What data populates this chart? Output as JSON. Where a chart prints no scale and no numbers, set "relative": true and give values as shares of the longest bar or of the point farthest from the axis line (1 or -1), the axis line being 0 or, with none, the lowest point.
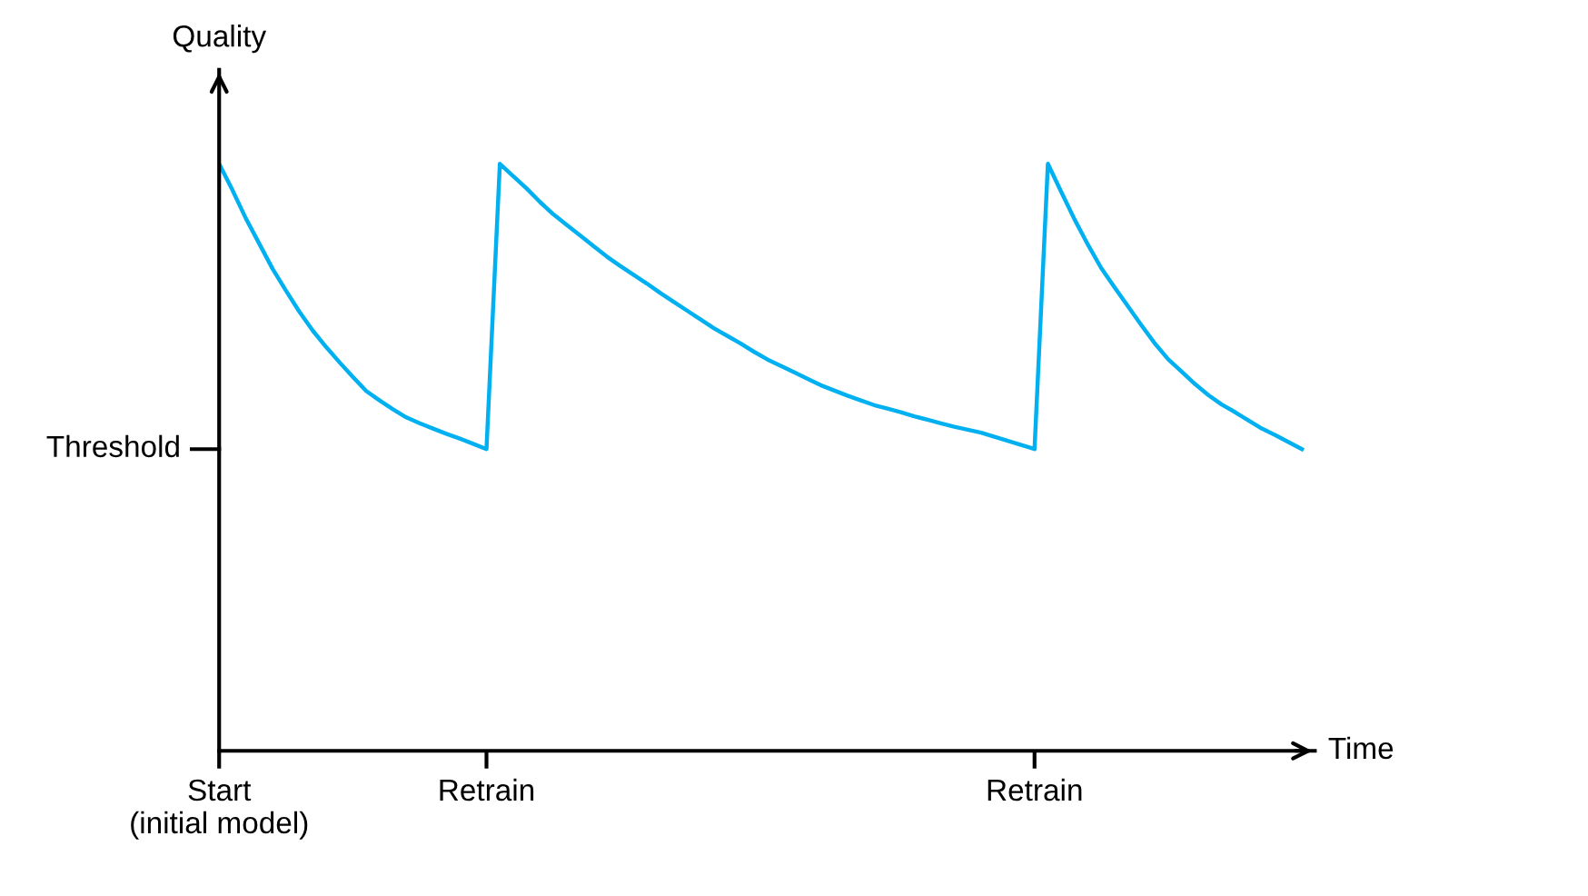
{
  "chart_data": {
    "type": "line",
    "relative": true,
    "xlabel": "Time",
    "ylabel": "Quality",
    "grid": false,
    "legend": false,
    "marker": "none",
    "line_style": "solid",
    "categories": [
      "Start\n(initial model)",
      null,
      null,
      null,
      null,
      null,
      null,
      null,
      null,
      null,
      null,
      null,
      null,
      null,
      null,
      null,
      null,
      null,
      null,
      null,
      "Retrain",
      null,
      null,
      null,
      null,
      null,
      null,
      null,
      null,
      null,
      null,
      null,
      null,
      null,
      null,
      null,
      null,
      null,
      null,
      null,
      null,
      null,
      null,
      null,
      null,
      null,
      null,
      null,
      null,
      null,
      null,
      null,
      null,
      null,
      null,
      null,
      null,
      null,
      null,
      null,
      null,
      "Retrain",
      null,
      null,
      null,
      null,
      null,
      null,
      null,
      null,
      null,
      null,
      null,
      null,
      null,
      null,
      null,
      null,
      null,
      null,
      null,
      null
    ],
    "ref_lines": [
      {
        "axis": "y",
        "value": 0.514,
        "label": "Threshold"
      }
    ],
    "tick_labels": "x",
    "series": [
      {
        "color": "#00b0f0",
        "values": [
          1.0,
          0.955,
          0.907,
          0.864,
          0.821,
          0.784,
          0.748,
          0.716,
          0.688,
          0.662,
          0.637,
          0.613,
          0.597,
          0.582,
          0.568,
          0.558,
          0.549,
          0.54,
          0.532,
          0.523,
          0.514,
          1.0,
          0.979,
          0.958,
          0.935,
          0.914,
          0.896,
          0.878,
          0.86,
          0.842,
          0.826,
          0.811,
          0.796,
          0.78,
          0.765,
          0.75,
          0.735,
          0.72,
          0.707,
          0.694,
          0.68,
          0.667,
          0.656,
          0.645,
          0.634,
          0.623,
          0.614,
          0.605,
          0.597,
          0.589,
          0.583,
          0.577,
          0.57,
          0.564,
          0.558,
          0.552,
          0.547,
          0.542,
          0.535,
          0.528,
          0.521,
          0.514,
          1.0,
          0.952,
          0.905,
          0.862,
          0.822,
          0.789,
          0.757,
          0.725,
          0.694,
          0.667,
          0.646,
          0.625,
          0.606,
          0.59,
          0.577,
          0.563,
          0.549,
          0.538,
          0.526,
          0.514
        ]
      }
    ]
  }
}
